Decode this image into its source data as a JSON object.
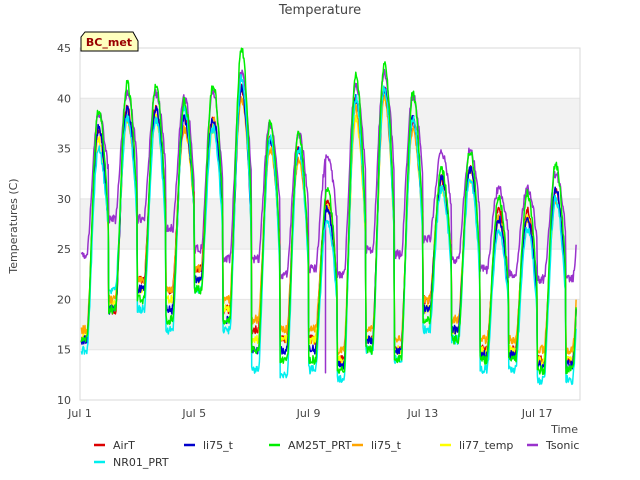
{
  "chart_data": {
    "type": "line",
    "title": "Temperature",
    "xlabel": "Time",
    "ylabel": "Temperatures (C)",
    "badge": "BC_met",
    "ylim": [
      10,
      45
    ],
    "yticks": [
      10,
      15,
      20,
      25,
      30,
      35,
      40,
      45
    ],
    "xlim": [
      "2024-07-01",
      "2024-07-18"
    ],
    "xticks": [
      {
        "date": "2024-07-01",
        "label": "Jul 1"
      },
      {
        "date": "2024-07-05",
        "label": "Jul 5"
      },
      {
        "date": "2024-07-09",
        "label": "Jul 9"
      },
      {
        "date": "2024-07-13",
        "label": "Jul 13"
      },
      {
        "date": "2024-07-17",
        "label": "Jul 17"
      }
    ],
    "grid": "horizontal bands",
    "legend_position": "bottom",
    "days": [
      "2024-07-01",
      "2024-07-02",
      "2024-07-03",
      "2024-07-04",
      "2024-07-05",
      "2024-07-06",
      "2024-07-07",
      "2024-07-08",
      "2024-07-09",
      "2024-07-10",
      "2024-07-11",
      "2024-07-12",
      "2024-07-13",
      "2024-07-14",
      "2024-07-15",
      "2024-07-16",
      "2024-07-17"
    ],
    "series": [
      {
        "name": "AirT",
        "color": "#dd0000",
        "daily_min": [
          16,
          19,
          22,
          21,
          23,
          19,
          17,
          16,
          16,
          14,
          16,
          15,
          20,
          17,
          15,
          15,
          14
        ],
        "daily_max": [
          37,
          39,
          39,
          38,
          38,
          41,
          36,
          35,
          30,
          40,
          41,
          38,
          32,
          33,
          29,
          29,
          31
        ]
      },
      {
        "name": "NR01_PRT",
        "color": "#00eeee",
        "daily_min": [
          15,
          21,
          19,
          17,
          21,
          17,
          13,
          12.5,
          13,
          12,
          15,
          14,
          17,
          16,
          13,
          13,
          12
        ],
        "daily_max": [
          35,
          38,
          38,
          39,
          37,
          42,
          36,
          35,
          28,
          40,
          41,
          38,
          31,
          32,
          27,
          27,
          30
        ]
      },
      {
        "name": "li75_t",
        "color": "#0000cc",
        "daily_min": [
          16,
          19,
          21,
          19,
          22,
          18,
          15,
          15,
          15,
          13.5,
          16,
          15,
          19,
          17,
          14.5,
          14.5,
          13.5
        ],
        "daily_max": [
          37,
          39,
          39,
          38,
          38,
          41,
          36,
          35,
          29,
          40,
          41,
          38,
          32,
          33,
          28,
          28,
          31
        ]
      },
      {
        "name": "AM25T_PRT",
        "color": "#00ee00",
        "daily_min": [
          16,
          19,
          20,
          18,
          21,
          18,
          15,
          14,
          14,
          13,
          15,
          14,
          18,
          16,
          14,
          14,
          13
        ],
        "daily_max": [
          38.8,
          41.5,
          41.2,
          39.8,
          41.3,
          44.8,
          37.5,
          36.5,
          31,
          42.5,
          43.5,
          40.5,
          33,
          34.8,
          30,
          30.5,
          33.5
        ]
      },
      {
        "name": "li75_t",
        "color": "#ffa500",
        "daily_min": [
          17,
          20,
          22,
          21,
          23,
          20,
          18,
          17,
          17,
          15,
          17,
          16,
          20,
          18,
          16,
          16,
          15
        ],
        "daily_max": [
          37,
          38,
          38,
          37,
          38,
          40,
          35,
          34,
          29,
          39,
          40,
          37,
          32,
          33,
          28,
          28,
          30
        ]
      },
      {
        "name": "li77_temp",
        "color": "#ffff00",
        "daily_min": [
          16.5,
          19.5,
          21,
          20,
          22,
          19,
          16,
          16,
          16,
          14,
          16,
          15,
          19,
          17,
          15,
          15,
          14
        ],
        "daily_max": [
          36,
          38,
          38,
          37,
          37,
          40,
          35,
          34,
          29,
          38,
          40,
          37,
          31,
          32,
          28,
          28,
          30
        ]
      },
      {
        "name": "Tsonic",
        "color": "#9933cc",
        "daily_min": [
          24.5,
          28,
          28,
          27,
          25,
          24,
          24,
          22.5,
          23,
          22.5,
          25,
          24.5,
          26,
          24,
          23,
          22.5,
          22
        ],
        "daily_max": [
          38.5,
          40.5,
          40.5,
          40,
          40.5,
          42.5,
          37.5,
          36.5,
          34.3,
          41.5,
          42.5,
          40.3,
          34.5,
          34.8,
          31,
          31,
          32.5
        ]
      }
    ],
    "annotations": [
      {
        "series": "Tsonic",
        "date": "2024-07-09 14:00",
        "value": 12.7,
        "note": "spike"
      }
    ]
  }
}
